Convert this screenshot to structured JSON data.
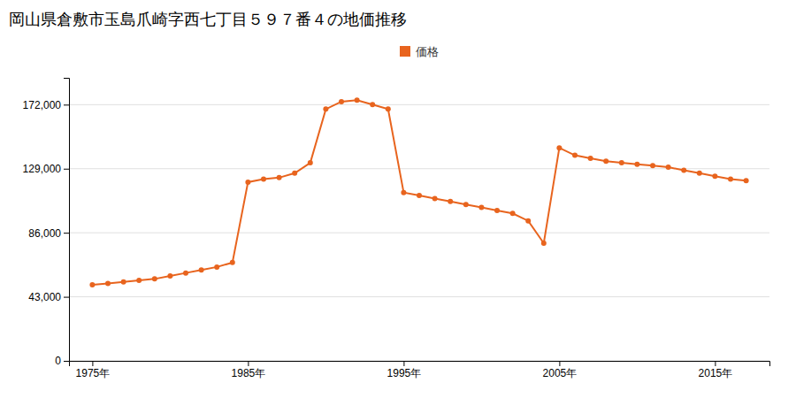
{
  "chart_data": {
    "type": "line",
    "title": "岡山県倉敷市玉島爪崎字西七丁目５９７番４の地価推移",
    "x": [
      1975,
      1976,
      1977,
      1978,
      1979,
      1980,
      1981,
      1982,
      1983,
      1984,
      1985,
      1986,
      1987,
      1988,
      1989,
      1990,
      1991,
      1992,
      1993,
      1994,
      1995,
      1996,
      1997,
      1998,
      1999,
      2000,
      2001,
      2002,
      2003,
      2004,
      2005,
      2006,
      2007,
      2008,
      2009,
      2010,
      2011,
      2012,
      2013,
      2014,
      2015,
      2016,
      2017
    ],
    "series": [
      {
        "name": "価格",
        "color": "#e8641e",
        "marker": "circle",
        "values": [
          51000,
          52000,
          53000,
          54000,
          55000,
          57000,
          59000,
          61000,
          63000,
          66000,
          120000,
          122000,
          123000,
          126000,
          133000,
          169000,
          174000,
          175000,
          172000,
          169000,
          113000,
          111000,
          109000,
          107000,
          105000,
          103000,
          101000,
          99000,
          94000,
          79000,
          143000,
          138000,
          136000,
          134000,
          133000,
          132000,
          131000,
          130000,
          128000,
          126000,
          124000,
          122000,
          121000
        ]
      }
    ],
    "xlim": [
      1973.5,
      2018.5
    ],
    "xticks": [
      {
        "value": 1975,
        "label": "1975年"
      },
      {
        "value": 1985,
        "label": "1985年"
      },
      {
        "value": 1995,
        "label": "1995年"
      },
      {
        "value": 2005,
        "label": "2005年"
      },
      {
        "value": 2015,
        "label": "2015年"
      }
    ],
    "ylim": [
      0,
      190000
    ],
    "yticks": [
      0,
      {
        "value": 43000,
        "label": "43,000"
      },
      {
        "value": 86000,
        "label": "86,000"
      },
      {
        "value": 129000,
        "label": "129,000"
      },
      {
        "value": 172000,
        "label": "172,000"
      }
    ],
    "grid": true,
    "legend": "top"
  }
}
